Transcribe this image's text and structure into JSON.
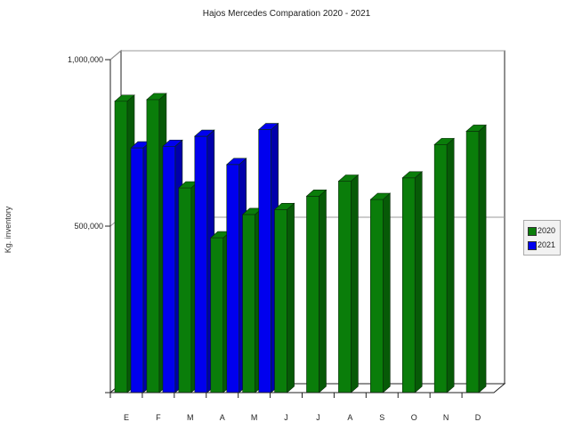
{
  "chart_data": {
    "type": "bar",
    "title": "Hajos Mercedes Comparation 2020 - 2021",
    "ylabel": "Kg. inventory",
    "xlabel": "",
    "categories": [
      "E",
      "F",
      "M",
      "A",
      "M",
      "J",
      "J",
      "A",
      "S",
      "O",
      "N",
      "D"
    ],
    "series": [
      {
        "name": "2020",
        "color": "#0a7d0a",
        "values": [
          875000,
          880000,
          615000,
          465000,
          535000,
          550000,
          590000,
          635000,
          580000,
          645000,
          745000,
          785000
        ]
      },
      {
        "name": "2021",
        "color": "#0000ee",
        "values": [
          735000,
          740000,
          770000,
          685000,
          790000,
          null,
          null,
          null,
          null,
          null,
          null,
          null
        ]
      }
    ],
    "ylim": [
      0,
      1000000
    ],
    "yticks": [
      0,
      500000,
      1000000
    ],
    "ytick_labels": [
      "",
      "500,000",
      "1,000,000"
    ],
    "grid": true,
    "legend_position": "right",
    "style": "3d"
  }
}
